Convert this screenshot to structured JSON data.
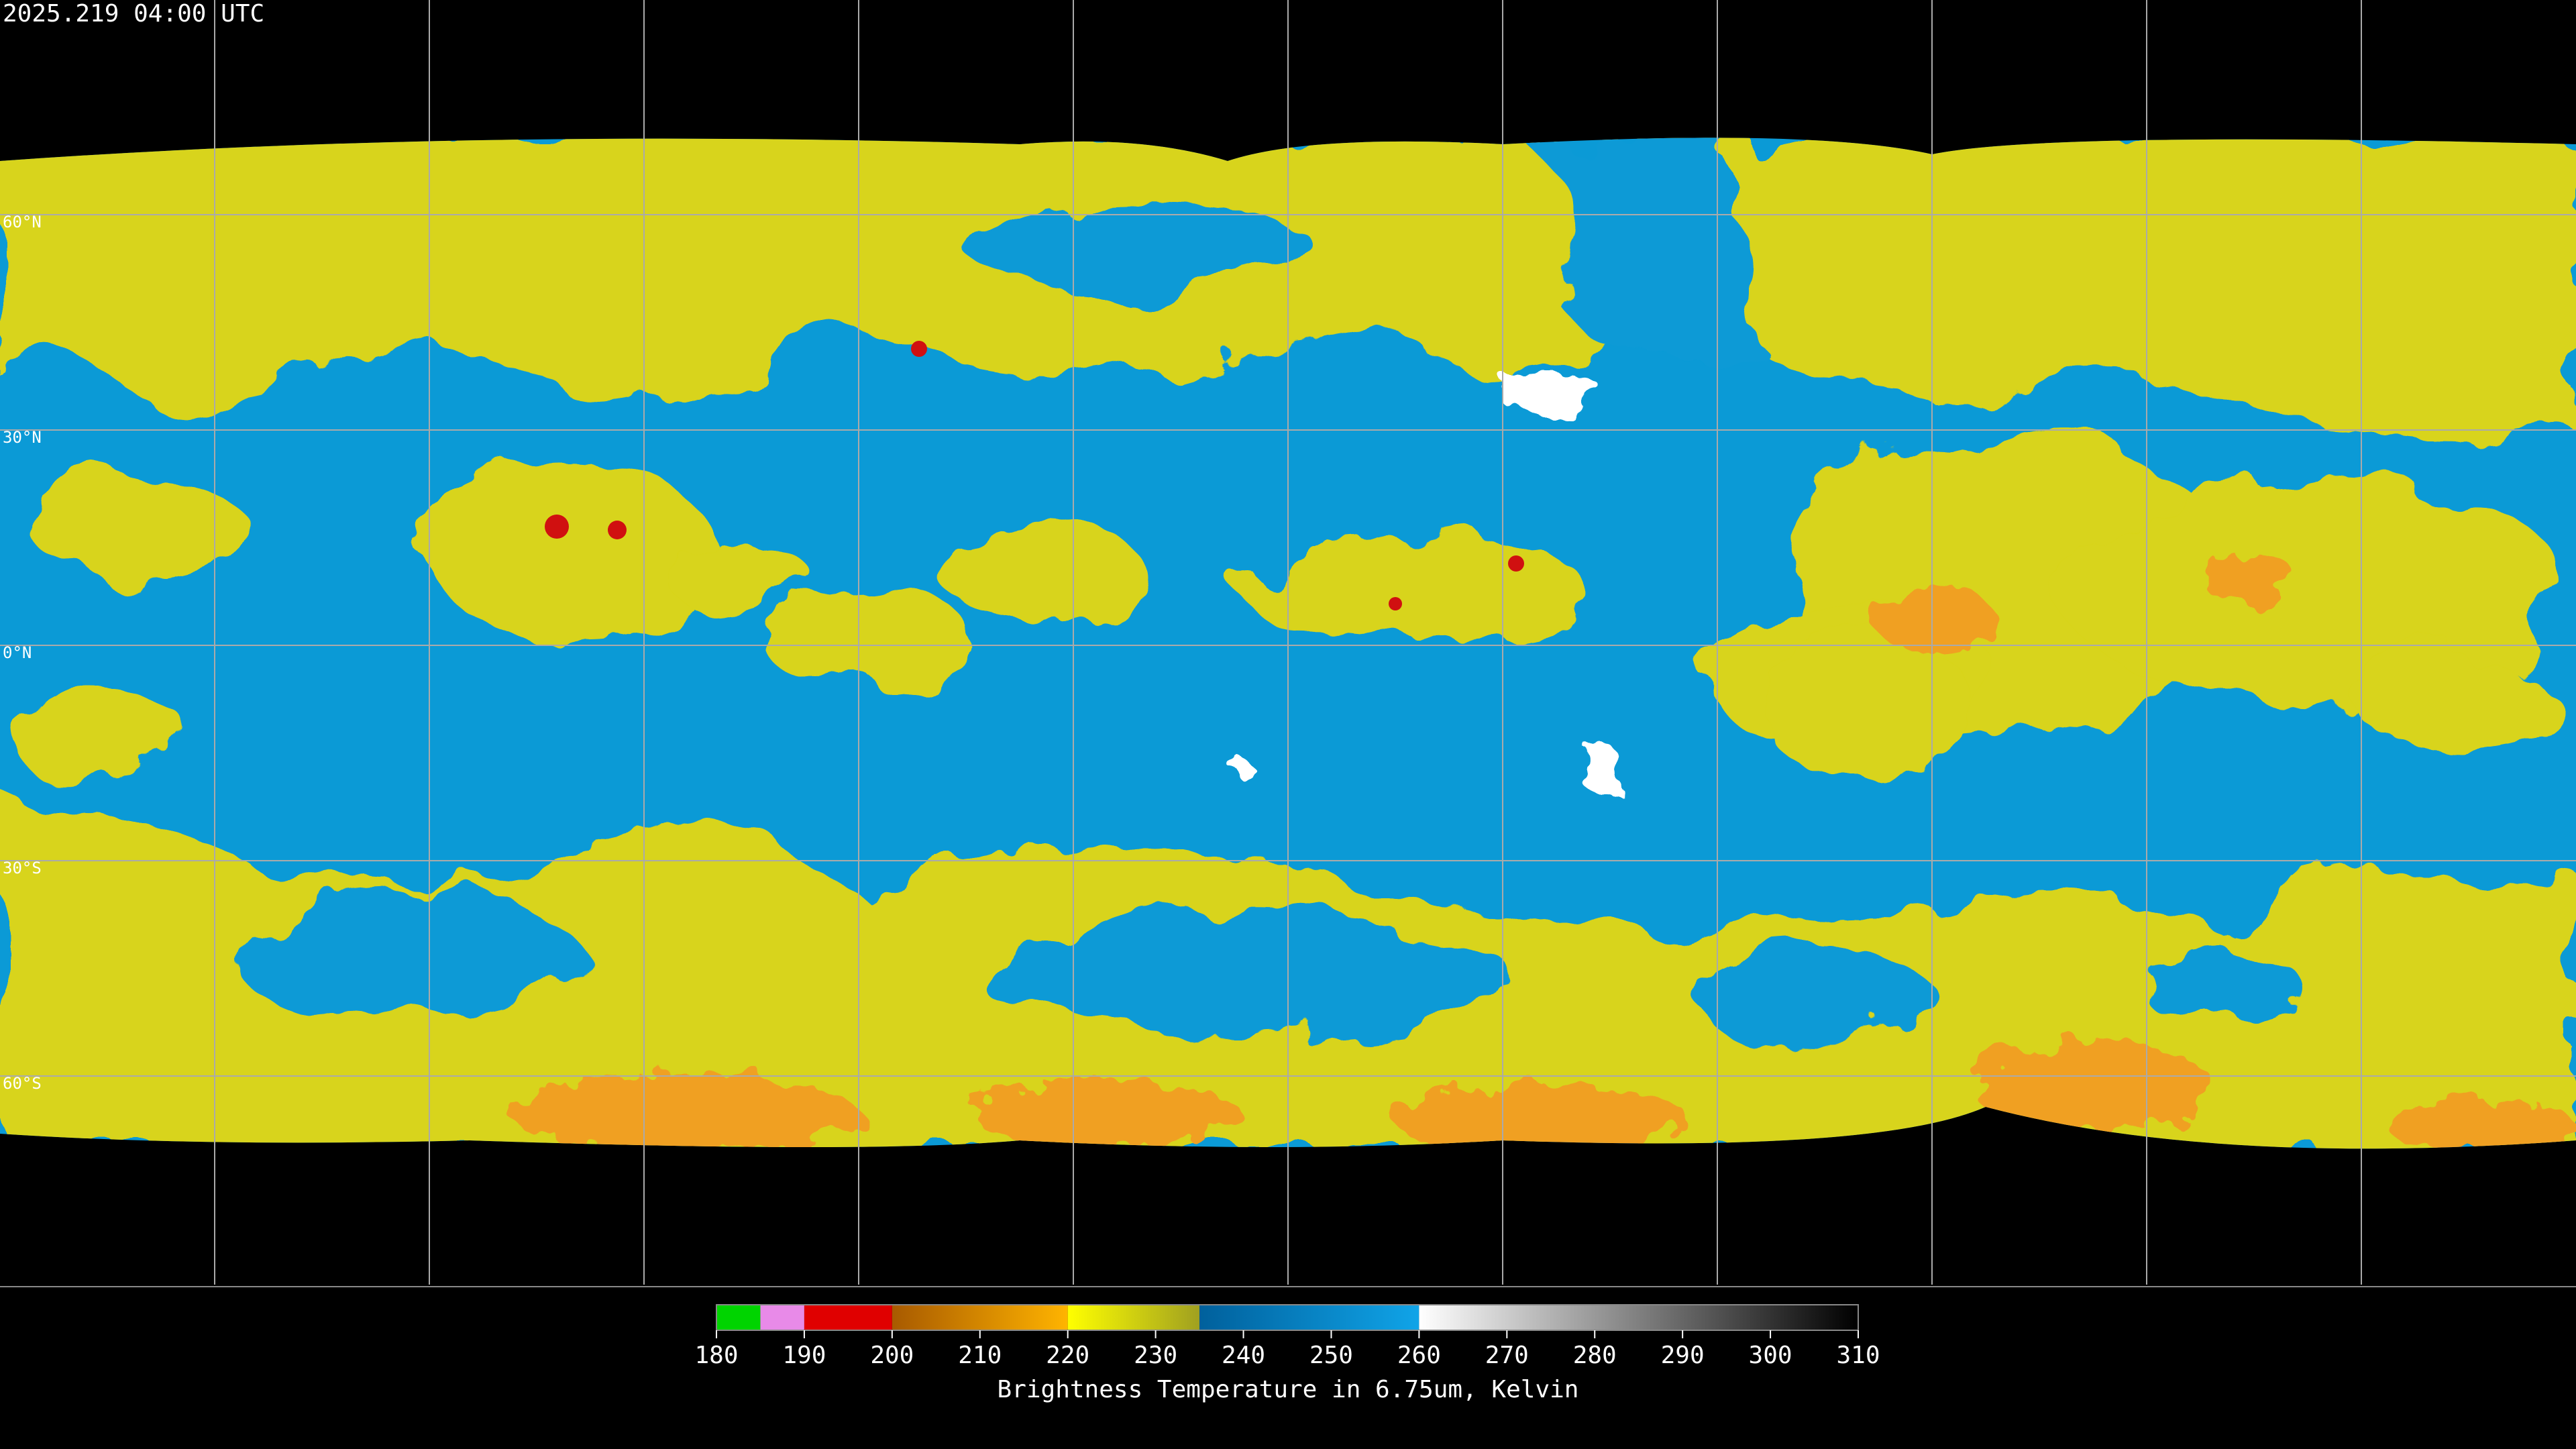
{
  "header": {
    "timestamp": "2025.219 04:00 UTC"
  },
  "grid": {
    "latitudes": [
      {
        "value": 60,
        "label": "60°N"
      },
      {
        "value": 30,
        "label": "30°N"
      },
      {
        "value": 0,
        "label": "0°N"
      },
      {
        "value": -30,
        "label": "30°S"
      },
      {
        "value": -60,
        "label": "60°S"
      }
    ]
  },
  "colorbar": {
    "ticks": [
      180,
      190,
      200,
      210,
      220,
      230,
      240,
      250,
      260,
      270,
      280,
      290,
      300,
      310
    ],
    "segments": [
      {
        "from": 180,
        "to": 185,
        "colors": [
          "#00d400",
          "#00d400"
        ]
      },
      {
        "from": 185,
        "to": 190,
        "colors": [
          "#e88ae8",
          "#e88ae8"
        ]
      },
      {
        "from": 190,
        "to": 200,
        "colors": [
          "#e00000",
          "#e00000"
        ]
      },
      {
        "from": 200,
        "to": 220,
        "colors": [
          "#a85a00",
          "#ffb400"
        ]
      },
      {
        "from": 220,
        "to": 235,
        "colors": [
          "#ffff00",
          "#a0a020"
        ]
      },
      {
        "from": 235,
        "to": 260,
        "colors": [
          "#00609c",
          "#10a4e8"
        ]
      },
      {
        "from": 260,
        "to": 310,
        "colors": [
          "#ffffff",
          "#000000"
        ]
      }
    ],
    "label": "Brightness Temperature in 6.75um, Kelvin"
  }
}
